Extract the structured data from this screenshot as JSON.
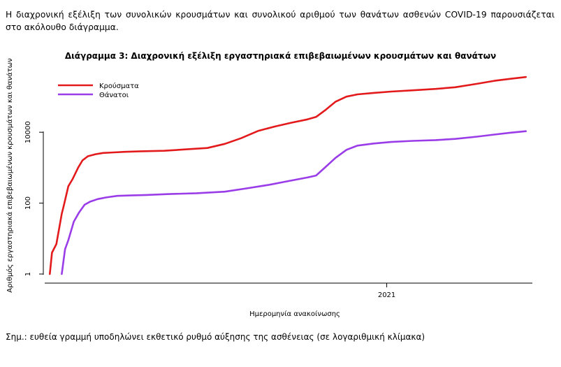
{
  "intro_text": "Η διαχρονική εξέλιξη των συνολικών κρουσμάτων και συνολικού αριθμού των θανάτων ασθενών COVID-19 παρουσιάζεται στο ακόλουθο διάγραμμα.",
  "note": "Σημ.: ευθεία γραμμή υποδηλώνει εκθετικό ρυθμό αύξησης της ασθένειας (σε λογαριθμική κλίμακα)",
  "chart_data": {
    "type": "line",
    "title": "Διάγραμμα 3: Διαχρονική εξέλιξη εργαστηριακά επιβεβαιωμένων κρουσμάτων και θανάτων",
    "xlabel": "Ημερομηνία ανακοίνωσης",
    "ylabel": "Αριθμός εργαστηριακά επιβεβαιωμένων κρουσμάτων και θανάτων",
    "y_scale": "log",
    "ylim": [
      1,
      600000
    ],
    "xlim": [
      "2020-02-20",
      "2021-05-15"
    ],
    "y_ticks": [
      1,
      100,
      10000
    ],
    "y_tick_labels": [
      "1",
      "100",
      "10000"
    ],
    "x_ticks": [
      "2021-01-01"
    ],
    "x_tick_labels": [
      "2021"
    ],
    "grid": false,
    "legend_position": "top-left",
    "series": [
      {
        "name": "Κρούσματα",
        "color": "#e31a1c",
        "x": [
          "2020-02-26",
          "2020-02-28",
          "2020-03-03",
          "2020-03-08",
          "2020-03-10",
          "2020-03-14",
          "2020-03-18",
          "2020-03-23",
          "2020-03-27",
          "2020-04-01",
          "2020-04-08",
          "2020-04-15",
          "2020-04-25",
          "2020-05-05",
          "2020-05-20",
          "2020-06-10",
          "2020-07-01",
          "2020-07-20",
          "2020-08-05",
          "2020-08-20",
          "2020-09-05",
          "2020-09-20",
          "2020-10-05",
          "2020-10-20",
          "2020-10-28",
          "2020-11-05",
          "2020-11-15",
          "2020-11-25",
          "2020-12-05",
          "2020-12-20",
          "2021-01-05",
          "2021-01-25",
          "2021-02-15",
          "2021-03-05",
          "2021-03-25",
          "2021-04-10",
          "2021-04-25",
          "2021-05-09"
        ],
        "values": [
          1,
          4,
          7,
          50,
          90,
          300,
          480,
          1000,
          1600,
          2100,
          2400,
          2600,
          2700,
          2800,
          2900,
          3000,
          3300,
          3600,
          4700,
          6800,
          11000,
          14500,
          18500,
          23000,
          27000,
          41000,
          73000,
          101000,
          117000,
          129000,
          140000,
          152000,
          167000,
          186000,
          232000,
          282000,
          322000,
          360000
        ]
      },
      {
        "name": "Θάνατοι",
        "color": "#9a3de8",
        "x": [
          "2020-03-08",
          "2020-03-11",
          "2020-03-14",
          "2020-03-19",
          "2020-03-24",
          "2020-03-29",
          "2020-04-03",
          "2020-04-10",
          "2020-04-18",
          "2020-04-28",
          "2020-05-10",
          "2020-05-25",
          "2020-06-15",
          "2020-07-10",
          "2020-08-05",
          "2020-08-25",
          "2020-09-15",
          "2020-10-01",
          "2020-10-20",
          "2020-10-28",
          "2020-11-05",
          "2020-11-15",
          "2020-11-25",
          "2020-12-05",
          "2020-12-20",
          "2021-01-05",
          "2021-01-25",
          "2021-02-15",
          "2021-03-05",
          "2021-03-25",
          "2021-04-10",
          "2021-04-25",
          "2021-05-09"
        ],
        "values": [
          1,
          5,
          9,
          30,
          55,
          90,
          110,
          130,
          145,
          160,
          165,
          170,
          180,
          190,
          210,
          260,
          330,
          410,
          530,
          600,
          1000,
          1900,
          3200,
          4200,
          4800,
          5300,
          5700,
          6000,
          6500,
          7500,
          8600,
          9700,
          10700
        ]
      }
    ]
  }
}
